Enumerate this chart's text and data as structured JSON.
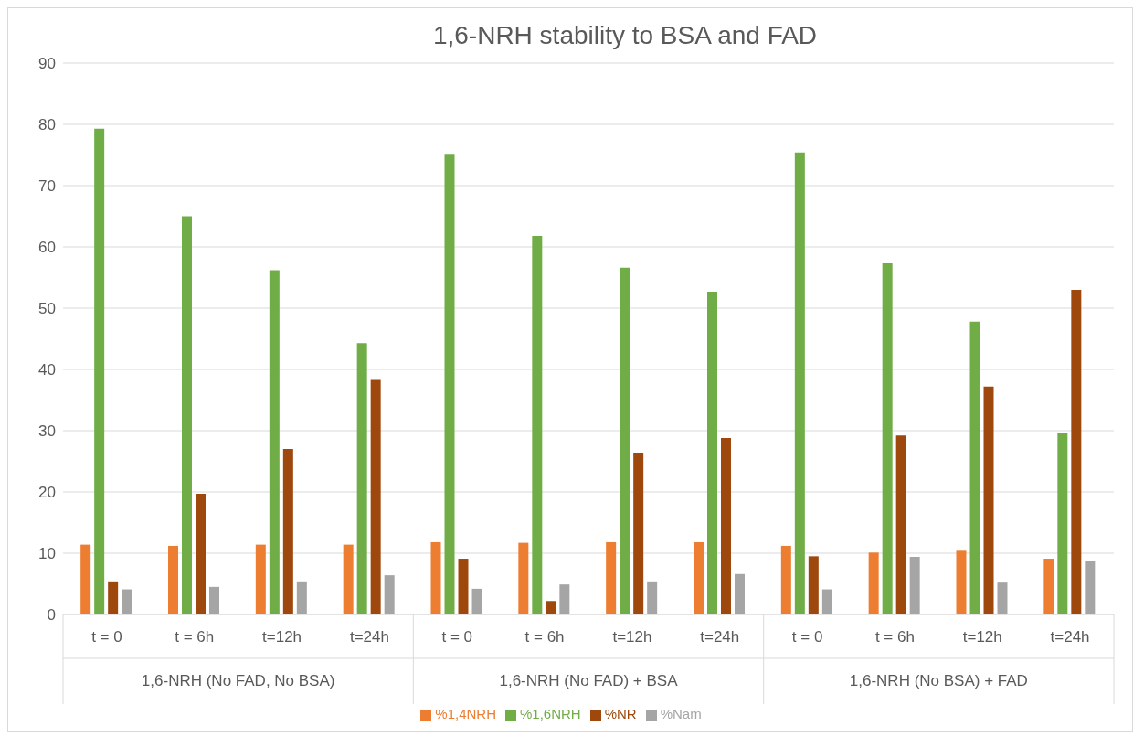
{
  "chart_data": {
    "type": "bar",
    "title": "1,6-NRH stability to BSA and FAD",
    "categories": [
      "t = 0",
      "t = 6h",
      "t=12h",
      "t=24h",
      "t = 0",
      "t = 6h",
      "t=12h",
      "t=24h",
      "t = 0",
      "t = 6h",
      "t=12h",
      "t=24h"
    ],
    "annotations": [
      "1,6-NRH (No FAD, No BSA)",
      "1,6-NRH (No FAD) + BSA",
      "1,6-NRH (No BSA) + FAD"
    ],
    "series": [
      {
        "name": "%1,4NRH",
        "color": "#ed7d31",
        "values": [
          11.4,
          11.2,
          11.4,
          11.4,
          11.8,
          11.7,
          11.8,
          11.8,
          11.2,
          10.1,
          10.4,
          9.1
        ]
      },
      {
        "name": "%1,6NRH",
        "color": "#70ad47",
        "values": [
          79.3,
          65.0,
          56.2,
          44.3,
          75.2,
          61.8,
          56.6,
          52.7,
          75.4,
          57.3,
          47.8,
          29.6
        ]
      },
      {
        "name": "%NR",
        "color": "#9e480e",
        "values": [
          5.4,
          19.7,
          27.0,
          38.3,
          9.1,
          2.2,
          26.4,
          28.8,
          9.5,
          29.2,
          37.2,
          53.0
        ]
      },
      {
        "name": "%Nam",
        "color": "#a5a5a5",
        "values": [
          4.1,
          4.5,
          5.4,
          6.4,
          4.2,
          4.9,
          5.4,
          6.6,
          4.1,
          9.4,
          5.2,
          8.8
        ]
      }
    ],
    "ylim": [
      0,
      90
    ],
    "yticks": [
      0,
      10,
      20,
      30,
      40,
      50,
      60,
      70,
      80,
      90
    ],
    "grid": "y",
    "legend": "bottom"
  }
}
